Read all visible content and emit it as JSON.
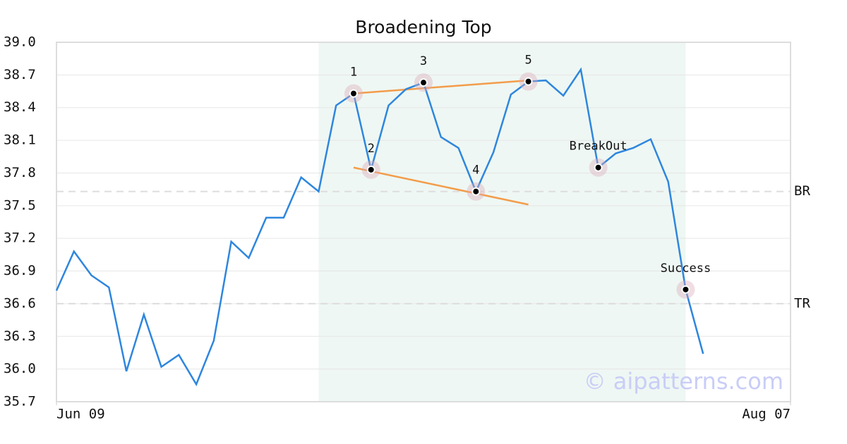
{
  "chart_data": {
    "type": "line",
    "title": "Broadening Top",
    "watermark": "© aipatterns.com",
    "xlim": [
      0,
      42
    ],
    "xticks": [
      {
        "value": 0,
        "label": "Jun 09"
      },
      {
        "value": 42,
        "label": "Aug 07"
      }
    ],
    "ylim": [
      35.7,
      39.0
    ],
    "yticks": [
      {
        "value": 35.7,
        "label": "35.7"
      },
      {
        "value": 36.0,
        "label": "36.0"
      },
      {
        "value": 36.3,
        "label": "36.3"
      },
      {
        "value": 36.6,
        "label": "36.6"
      },
      {
        "value": 36.9,
        "label": "36.9"
      },
      {
        "value": 37.2,
        "label": "37.2"
      },
      {
        "value": 37.5,
        "label": "37.5"
      },
      {
        "value": 37.8,
        "label": "37.8"
      },
      {
        "value": 38.1,
        "label": "38.1"
      },
      {
        "value": 38.4,
        "label": "38.4"
      },
      {
        "value": 38.7,
        "label": "38.7"
      },
      {
        "value": 39.0,
        "label": "39.0"
      }
    ],
    "grid": true,
    "series": [
      {
        "color": "#2e86de",
        "values": [
          36.72,
          37.08,
          36.86,
          36.75,
          35.98,
          36.5,
          36.02,
          36.13,
          35.86,
          36.26,
          37.17,
          37.02,
          37.39,
          37.39,
          37.76,
          37.63,
          38.42,
          38.53,
          37.83,
          38.42,
          38.57,
          38.63,
          38.13,
          38.03,
          37.63,
          37.99,
          38.52,
          38.64,
          38.65,
          38.51,
          38.75,
          37.85,
          37.98,
          38.03,
          38.11,
          37.72,
          36.73,
          36.14
        ]
      }
    ],
    "shade": {
      "x": [
        15,
        36
      ],
      "color": "#eef7f3"
    },
    "annotations": [
      {
        "label": "1",
        "x": 17
      },
      {
        "label": "2",
        "x": 18
      },
      {
        "label": "3",
        "x": 21
      },
      {
        "label": "4",
        "x": 24
      },
      {
        "label": "5",
        "x": 27
      },
      {
        "label": "BreakOut",
        "x": 31
      },
      {
        "label": "Success",
        "x": 36
      }
    ],
    "trendlines": [
      {
        "x": [
          17,
          27
        ],
        "y": [
          38.53,
          38.65
        ],
        "color": "#f39c4a"
      },
      {
        "x": [
          17,
          27
        ],
        "y": [
          37.85,
          37.51
        ],
        "color": "#f39c4a"
      }
    ],
    "hlines": [
      {
        "label": "BR",
        "value": 37.63
      },
      {
        "label": "TR",
        "value": 36.6
      }
    ]
  }
}
